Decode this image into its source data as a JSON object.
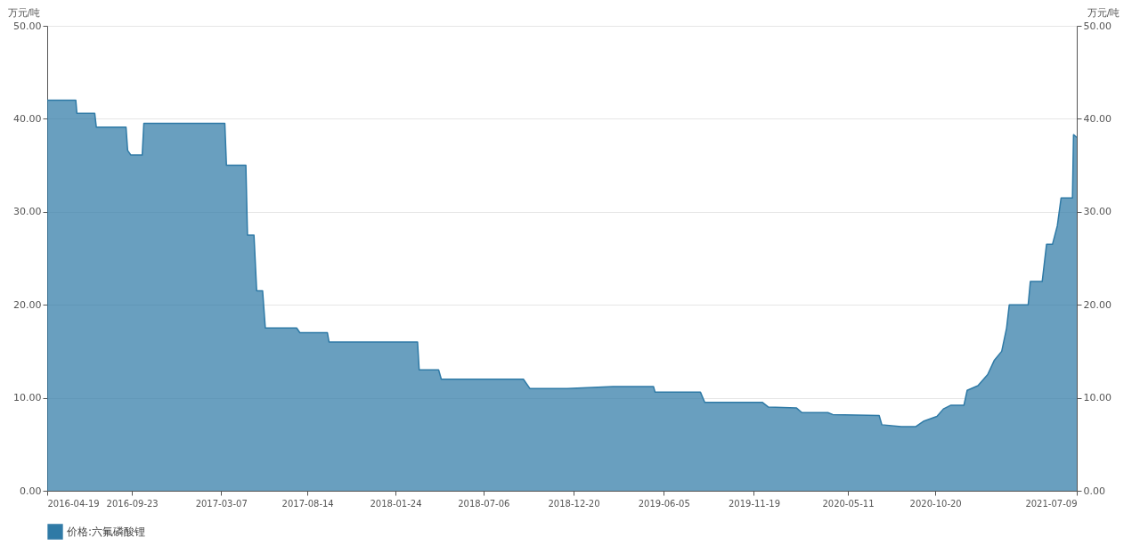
{
  "chart_data": {
    "type": "area",
    "ylabel": "万元/吨",
    "y2label": "万元/吨",
    "x": [
      "2016-04-19",
      "2016-06-11",
      "2016-06-13",
      "2016-07-16",
      "2016-07-19",
      "2016-09-12",
      "2016-09-15",
      "2016-09-21",
      "2016-10-12",
      "2016-10-15",
      "2017-03-14",
      "2017-03-17",
      "2017-04-22",
      "2017-04-25",
      "2017-05-07",
      "2017-05-12",
      "2017-05-23",
      "2017-05-28",
      "2017-07-25",
      "2017-07-31",
      "2017-09-20",
      "2017-09-23",
      "2018-03-06",
      "2018-03-09",
      "2018-04-14",
      "2018-04-19",
      "2018-09-18",
      "2018-09-30",
      "2018-12-08",
      "2019-03-03",
      "2019-05-17",
      "2019-05-20",
      "2019-08-12",
      "2019-08-20",
      "2019-12-05",
      "2019-12-16",
      "2020-02-06",
      "2020-02-16",
      "2020-04-04",
      "2020-04-13",
      "2020-07-08",
      "2020-07-13",
      "2020-08-18",
      "2020-09-14",
      "2020-09-29",
      "2020-10-23",
      "2020-11-04",
      "2020-11-18",
      "2020-12-12",
      "2020-12-18",
      "2021-01-07",
      "2021-01-25",
      "2021-02-06",
      "2021-02-20",
      "2021-03-01",
      "2021-03-06",
      "2021-04-10",
      "2021-04-14",
      "2021-05-06",
      "2021-05-14",
      "2021-05-25",
      "2021-06-03",
      "2021-06-10",
      "2021-07-01",
      "2021-07-03",
      "2021-07-09"
    ],
    "series": [
      {
        "name": "价格:六氟磷酸锂",
        "color": "#2f7aa6",
        "values": [
          42,
          42,
          40.6,
          40.6,
          39.1,
          39.1,
          36.6,
          36.1,
          36.1,
          39.5,
          39.5,
          35,
          35,
          27.5,
          27.5,
          21.5,
          21.5,
          17.5,
          17.5,
          17,
          17,
          16,
          16,
          13,
          13,
          12,
          12,
          11,
          11,
          11.2,
          11.2,
          10.6,
          10.6,
          9.5,
          9.5,
          9,
          8.9,
          8.4,
          8.4,
          8.2,
          8.1,
          7.1,
          6.9,
          6.9,
          7.5,
          8,
          8.8,
          9.2,
          9.2,
          10.8,
          11.3,
          12.5,
          14,
          15,
          17.5,
          20,
          20,
          22.5,
          22.5,
          26.5,
          26.5,
          28.5,
          31.5,
          31.5,
          38.3,
          38
        ]
      }
    ],
    "xlim": [
      "2016-04-19",
      "2021-07-09"
    ],
    "xticks": [
      "2016-04-19",
      "2016-09-23",
      "2017-03-07",
      "2017-08-14",
      "2018-01-24",
      "2018-07-06",
      "2018-12-20",
      "2019-06-05",
      "2019-11-19",
      "2020-05-11",
      "2020-10-20",
      "2021-07-09"
    ],
    "ylim": [
      0,
      50
    ],
    "yticks": [
      {
        "value": 0,
        "label": "0.00"
      },
      {
        "value": 10,
        "label": "10.00"
      },
      {
        "value": 20,
        "label": "20.00"
      },
      {
        "value": 30,
        "label": "30.00"
      },
      {
        "value": 40,
        "label": "40.00"
      },
      {
        "value": 50,
        "label": "50.00"
      }
    ],
    "y2lim": [
      0,
      50
    ],
    "y2ticks": [
      {
        "value": 0,
        "label": "0.00"
      },
      {
        "value": 10,
        "label": "10.00"
      },
      {
        "value": 20,
        "label": "20.00"
      },
      {
        "value": 30,
        "label": "30.00"
      },
      {
        "value": 40,
        "label": "40.00"
      },
      {
        "value": 50,
        "label": "50.00"
      }
    ],
    "grid": "y",
    "legend": "bottom"
  }
}
